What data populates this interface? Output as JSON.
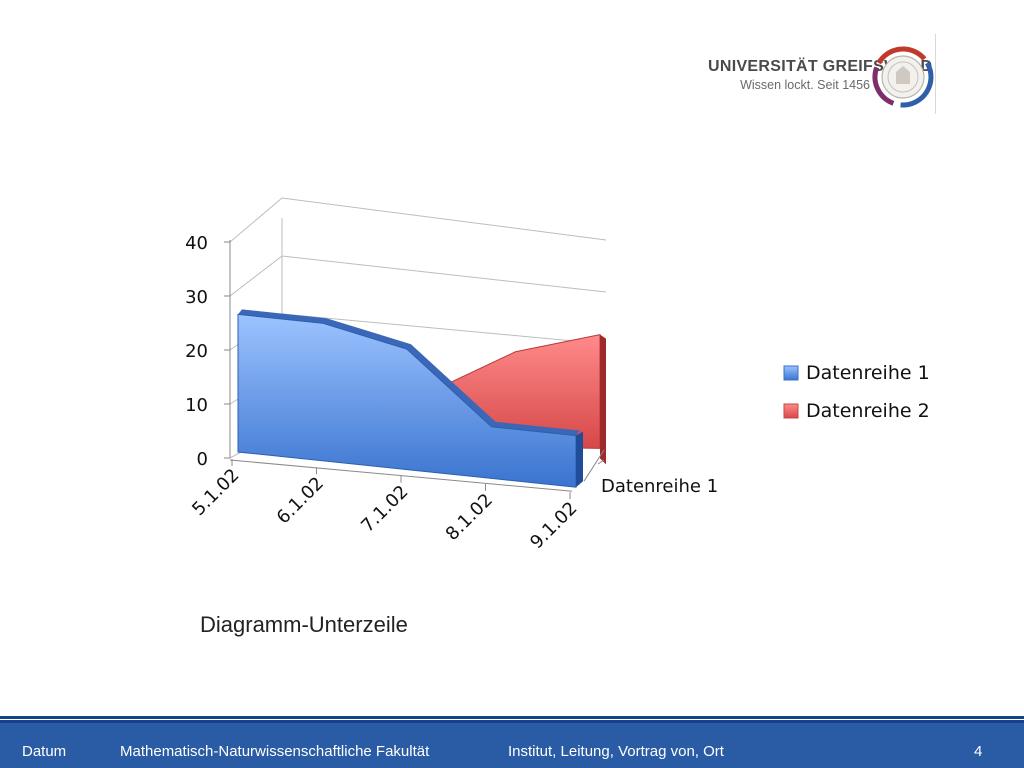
{
  "logo": {
    "name": "UNIVERSITÄT GREIFSWALD",
    "claim": "Wissen lockt. Seit 1456",
    "ring_colors": [
      "#c0392b",
      "#2f5fa8",
      "#7d2f6b"
    ]
  },
  "chart_data": {
    "type": "area",
    "style": "3d",
    "categories": [
      "5.1.02",
      "6.1.02",
      "7.1.02",
      "8.1.02",
      "9.1.02"
    ],
    "series": [
      {
        "name": "Datenreihe 1",
        "values": [
          32,
          32,
          28,
          12,
          12
        ],
        "color": "#4f86d9"
      },
      {
        "name": "Datenreihe 2",
        "values": [
          12,
          12,
          12,
          21,
          25
        ],
        "color": "#e25c5c"
      }
    ],
    "y_ticks": [
      0,
      10,
      20,
      30,
      40
    ],
    "ylim": [
      0,
      40
    ],
    "depth_axis_label": "Datenreihe 1",
    "legend": {
      "position": "right",
      "entries": [
        "Datenreihe 1",
        "Datenreihe 2"
      ]
    },
    "grid": true
  },
  "caption": "Diagramm-Unterzeile",
  "footer": {
    "date": "Datum",
    "faculty": "Mathematisch-Naturwissenschaftliche Fakultät",
    "institute": "Institut, Leitung, Vortrag von, Ort",
    "page": "4"
  }
}
